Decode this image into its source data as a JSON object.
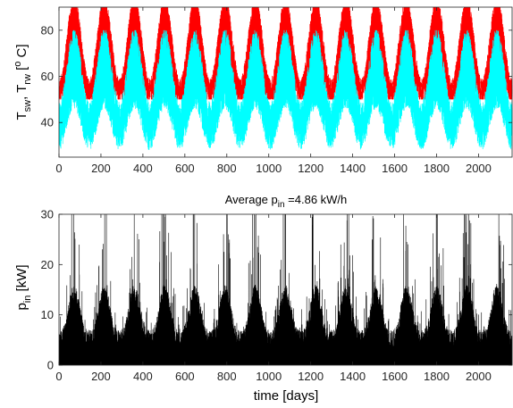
{
  "chart_data": [
    {
      "type": "line",
      "xlim": [
        0,
        2160
      ],
      "ylim": [
        25,
        90
      ],
      "xticks": [
        0,
        200,
        400,
        600,
        800,
        1000,
        1200,
        1400,
        1600,
        1800,
        2000
      ],
      "yticks": [
        40,
        60,
        80
      ],
      "xtick_labels": [
        "0",
        "200",
        "400",
        "600",
        "800",
        "1000",
        "1200",
        "1400",
        "1600",
        "1800",
        "2000"
      ],
      "ytick_labels": [
        "40",
        "60",
        "80"
      ],
      "ylabel": {
        "main": "T",
        "sub1": "sw",
        "sep": ", T",
        "sub2": "rw",
        "bracket": " [",
        "sup": "o",
        "unit": " C]"
      },
      "grid": false,
      "period_days": 144,
      "series": [
        {
          "key": "T_sw",
          "color": "#ff0000",
          "min": 50,
          "max": 90,
          "peak_days": [
            72,
            216,
            360,
            504,
            648,
            792,
            936,
            1080,
            1224,
            1368,
            1512,
            1656,
            1800,
            1944,
            2088
          ]
        },
        {
          "key": "T_rw",
          "color": "#00ffff",
          "min": 27,
          "max": 80,
          "trough_days": [
            0,
            144,
            288,
            432,
            576,
            720,
            864,
            1008,
            1152,
            1296,
            1440,
            1584,
            1728,
            1872,
            2016,
            2160
          ]
        }
      ]
    },
    {
      "type": "line",
      "title": {
        "pre": "Average p",
        "sub": "in",
        "post": " =4.86 kW/h"
      },
      "xlim": [
        0,
        2160
      ],
      "ylim": [
        0,
        30
      ],
      "xticks": [
        0,
        200,
        400,
        600,
        800,
        1000,
        1200,
        1400,
        1600,
        1800,
        2000
      ],
      "yticks": [
        0,
        10,
        20,
        30
      ],
      "xtick_labels": [
        "0",
        "200",
        "400",
        "600",
        "800",
        "1000",
        "1200",
        "1400",
        "1600",
        "1800",
        "2000"
      ],
      "ytick_labels": [
        "0",
        "10",
        "20",
        "30"
      ],
      "xlabel": "time [days]",
      "ylabel": {
        "main": "p",
        "sub": "in",
        "unit": " [kW]"
      },
      "grid": false,
      "series": [
        {
          "key": "p_in",
          "color": "#000000",
          "min": 0,
          "max": 30,
          "average": 4.86
        }
      ]
    }
  ]
}
